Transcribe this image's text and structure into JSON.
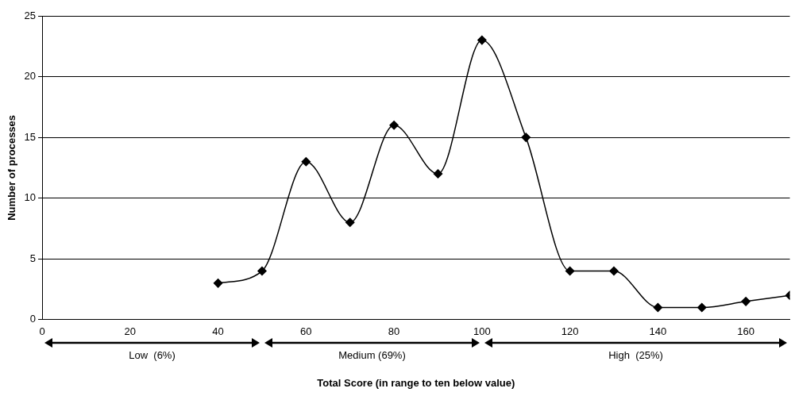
{
  "chart_data": {
    "type": "line",
    "xlabel": "Total Score (in range to ten below value)",
    "ylabel": "Number of processes",
    "x": [
      40,
      50,
      60,
      70,
      80,
      90,
      100,
      110,
      120,
      130,
      140,
      150,
      160,
      170
    ],
    "series": [
      {
        "color": "#000000",
        "values": [
          3,
          4,
          13,
          8,
          16,
          12,
          23,
          15,
          4,
          4,
          1,
          1,
          1.5,
          2
        ]
      }
    ],
    "xlim": [
      0,
      170
    ],
    "xticks": [
      0,
      20,
      40,
      60,
      80,
      100,
      120,
      140,
      160
    ],
    "ylim": [
      0,
      25
    ],
    "yticks": [
      0,
      5,
      10,
      15,
      20,
      25
    ],
    "grid": "y",
    "legend": false,
    "marker": "diamond",
    "line_style": "solid",
    "annotations": [
      "Low  (6%)",
      "Medium (69%)",
      "High  (25%)"
    ]
  }
}
